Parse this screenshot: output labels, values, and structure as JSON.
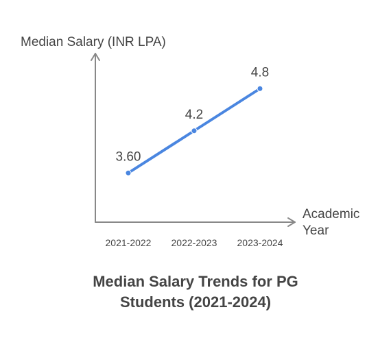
{
  "chart_data": {
    "type": "line",
    "title_lines": [
      "Median Salary Trends for PG",
      "Students (2021-2024)"
    ],
    "xlabel_lines": [
      "Academic",
      "Year"
    ],
    "ylabel": "Median Salary (INR LPA)",
    "categories": [
      "2021-2022",
      "2022-2023",
      "2023-2024"
    ],
    "series": [
      {
        "values": [
          3.6,
          4.2,
          4.8
        ],
        "labels": [
          "3.60",
          "4.2",
          "4.8"
        ]
      }
    ],
    "ylim": [
      2.9,
      5.3
    ],
    "grid": false,
    "legend": "none",
    "colors": {
      "line": "#4a86e0",
      "axis": "#888888",
      "text": "#444444"
    }
  }
}
